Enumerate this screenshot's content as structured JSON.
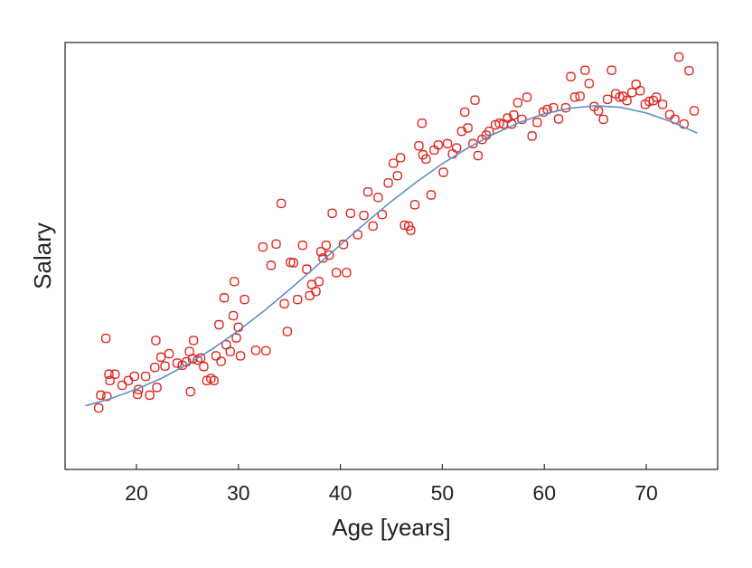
{
  "chart_data": {
    "type": "scatter",
    "title": "",
    "xlabel": "Age [years]",
    "ylabel": "Salary",
    "xlim": [
      13,
      77
    ],
    "ylim": [
      0,
      100
    ],
    "x_ticks": [
      20,
      30,
      40,
      50,
      60,
      70
    ],
    "x_tick_labels": [
      "20",
      "30",
      "40",
      "50",
      "60",
      "70"
    ],
    "y_ticks": [],
    "grid": false,
    "legend": "none",
    "colors": {
      "points": "#e0261f",
      "fit": "#5b8fc7",
      "axis": "#333333"
    },
    "points": [
      [
        16.3,
        14.4
      ],
      [
        16.5,
        17.4
      ],
      [
        17.0,
        30.7
      ],
      [
        17.1,
        17.1
      ],
      [
        17.3,
        22.3
      ],
      [
        17.4,
        20.8
      ],
      [
        17.9,
        22.3
      ],
      [
        18.6,
        19.7
      ],
      [
        19.2,
        20.8
      ],
      [
        19.8,
        21.8
      ],
      [
        20.1,
        17.6
      ],
      [
        20.2,
        18.7
      ],
      [
        20.9,
        21.8
      ],
      [
        21.3,
        17.4
      ],
      [
        21.8,
        23.9
      ],
      [
        21.9,
        30.2
      ],
      [
        22.0,
        19.2
      ],
      [
        22.4,
        26.3
      ],
      [
        22.8,
        24.2
      ],
      [
        23.2,
        27.1
      ],
      [
        24.0,
        24.9
      ],
      [
        24.5,
        24.4
      ],
      [
        24.9,
        25.2
      ],
      [
        25.2,
        27.6
      ],
      [
        25.3,
        18.2
      ],
      [
        25.5,
        25.9
      ],
      [
        25.6,
        30.2
      ],
      [
        26.0,
        25.6
      ],
      [
        26.3,
        26.1
      ],
      [
        26.6,
        24.1
      ],
      [
        26.9,
        20.8
      ],
      [
        27.3,
        21.3
      ],
      [
        27.6,
        20.8
      ],
      [
        27.8,
        26.6
      ],
      [
        28.1,
        33.9
      ],
      [
        28.3,
        25.3
      ],
      [
        28.6,
        40.2
      ],
      [
        28.8,
        29.2
      ],
      [
        29.2,
        27.6
      ],
      [
        29.5,
        36.0
      ],
      [
        29.6,
        44.0
      ],
      [
        29.8,
        30.8
      ],
      [
        30.0,
        33.3
      ],
      [
        30.2,
        26.6
      ],
      [
        30.6,
        39.8
      ],
      [
        31.7,
        27.9
      ],
      [
        32.4,
        52.1
      ],
      [
        32.7,
        27.8
      ],
      [
        33.2,
        47.8
      ],
      [
        33.7,
        52.8
      ],
      [
        34.2,
        62.3
      ],
      [
        34.5,
        38.8
      ],
      [
        34.8,
        32.3
      ],
      [
        35.1,
        48.5
      ],
      [
        35.4,
        48.4
      ],
      [
        35.8,
        39.8
      ],
      [
        36.3,
        52.5
      ],
      [
        36.7,
        46.9
      ],
      [
        37.0,
        40.7
      ],
      [
        37.2,
        43.3
      ],
      [
        37.6,
        41.7
      ],
      [
        37.9,
        44.0
      ],
      [
        38.1,
        51.0
      ],
      [
        38.3,
        49.5
      ],
      [
        38.6,
        52.5
      ],
      [
        38.9,
        50.2
      ],
      [
        39.2,
        60.0
      ],
      [
        39.6,
        46.1
      ],
      [
        40.3,
        52.7
      ],
      [
        40.6,
        46.1
      ],
      [
        41.0,
        60.0
      ],
      [
        41.7,
        55.0
      ],
      [
        42.3,
        59.5
      ],
      [
        42.7,
        65.0
      ],
      [
        43.2,
        57.0
      ],
      [
        43.7,
        63.7
      ],
      [
        44.1,
        59.7
      ],
      [
        44.7,
        67.1
      ],
      [
        45.2,
        71.7
      ],
      [
        45.6,
        68.8
      ],
      [
        45.9,
        73.0
      ],
      [
        46.3,
        57.2
      ],
      [
        46.7,
        57.0
      ],
      [
        46.9,
        56.0
      ],
      [
        47.3,
        62.0
      ],
      [
        47.7,
        75.8
      ],
      [
        48.0,
        81.1
      ],
      [
        48.1,
        73.7
      ],
      [
        48.4,
        72.7
      ],
      [
        48.9,
        64.3
      ],
      [
        49.2,
        74.8
      ],
      [
        49.6,
        76.0
      ],
      [
        50.1,
        69.6
      ],
      [
        50.5,
        76.3
      ],
      [
        51.0,
        73.9
      ],
      [
        51.4,
        75.3
      ],
      [
        51.9,
        79.2
      ],
      [
        52.2,
        83.7
      ],
      [
        52.5,
        80.0
      ],
      [
        53.0,
        76.3
      ],
      [
        53.2,
        86.5
      ],
      [
        53.5,
        73.5
      ],
      [
        53.9,
        77.3
      ],
      [
        54.3,
        78.3
      ],
      [
        54.6,
        79.2
      ],
      [
        55.2,
        80.7
      ],
      [
        55.6,
        81.1
      ],
      [
        56.0,
        80.9
      ],
      [
        56.4,
        82.3
      ],
      [
        56.8,
        80.9
      ],
      [
        57.0,
        83.0
      ],
      [
        57.4,
        85.9
      ],
      [
        57.8,
        82.0
      ],
      [
        58.3,
        87.2
      ],
      [
        58.8,
        78.1
      ],
      [
        59.3,
        81.3
      ],
      [
        59.9,
        83.7
      ],
      [
        60.3,
        84.3
      ],
      [
        60.9,
        84.7
      ],
      [
        61.4,
        82.1
      ],
      [
        62.1,
        84.7
      ],
      [
        62.6,
        92.0
      ],
      [
        63.0,
        87.2
      ],
      [
        63.5,
        87.4
      ],
      [
        64.0,
        93.5
      ],
      [
        64.4,
        90.4
      ],
      [
        64.9,
        85.0
      ],
      [
        65.3,
        84.0
      ],
      [
        65.8,
        82.0
      ],
      [
        66.2,
        86.7
      ],
      [
        66.6,
        93.5
      ],
      [
        67.0,
        88.0
      ],
      [
        67.4,
        87.2
      ],
      [
        67.7,
        87.4
      ],
      [
        68.1,
        86.4
      ],
      [
        68.6,
        88.3
      ],
      [
        69.0,
        90.2
      ],
      [
        69.4,
        88.7
      ],
      [
        69.9,
        85.5
      ],
      [
        70.3,
        86.2
      ],
      [
        70.7,
        86.4
      ],
      [
        71.0,
        87.2
      ],
      [
        71.6,
        85.5
      ],
      [
        72.3,
        83.1
      ],
      [
        72.8,
        82.0
      ],
      [
        73.2,
        96.6
      ],
      [
        73.7,
        80.9
      ],
      [
        74.2,
        93.4
      ],
      [
        74.7,
        84.0
      ]
    ],
    "fit_curve": [
      [
        15,
        14.9
      ],
      [
        17.5,
        16.6
      ],
      [
        20,
        18.8
      ],
      [
        22.5,
        21.4
      ],
      [
        25,
        24.6
      ],
      [
        27.5,
        28.3
      ],
      [
        30,
        32.5
      ],
      [
        32.5,
        37.1
      ],
      [
        35,
        42.1
      ],
      [
        37.5,
        47.3
      ],
      [
        40,
        52.6
      ],
      [
        42.5,
        57.8
      ],
      [
        45,
        62.8
      ],
      [
        47.5,
        67.4
      ],
      [
        50,
        71.6
      ],
      [
        52.5,
        75.3
      ],
      [
        55,
        78.5
      ],
      [
        57.5,
        81.2
      ],
      [
        60,
        83.3
      ],
      [
        62.5,
        84.6
      ],
      [
        65,
        85.2
      ],
      [
        67.5,
        84.8
      ],
      [
        70,
        83.5
      ],
      [
        72.5,
        81.4
      ],
      [
        75,
        78.8
      ]
    ]
  }
}
